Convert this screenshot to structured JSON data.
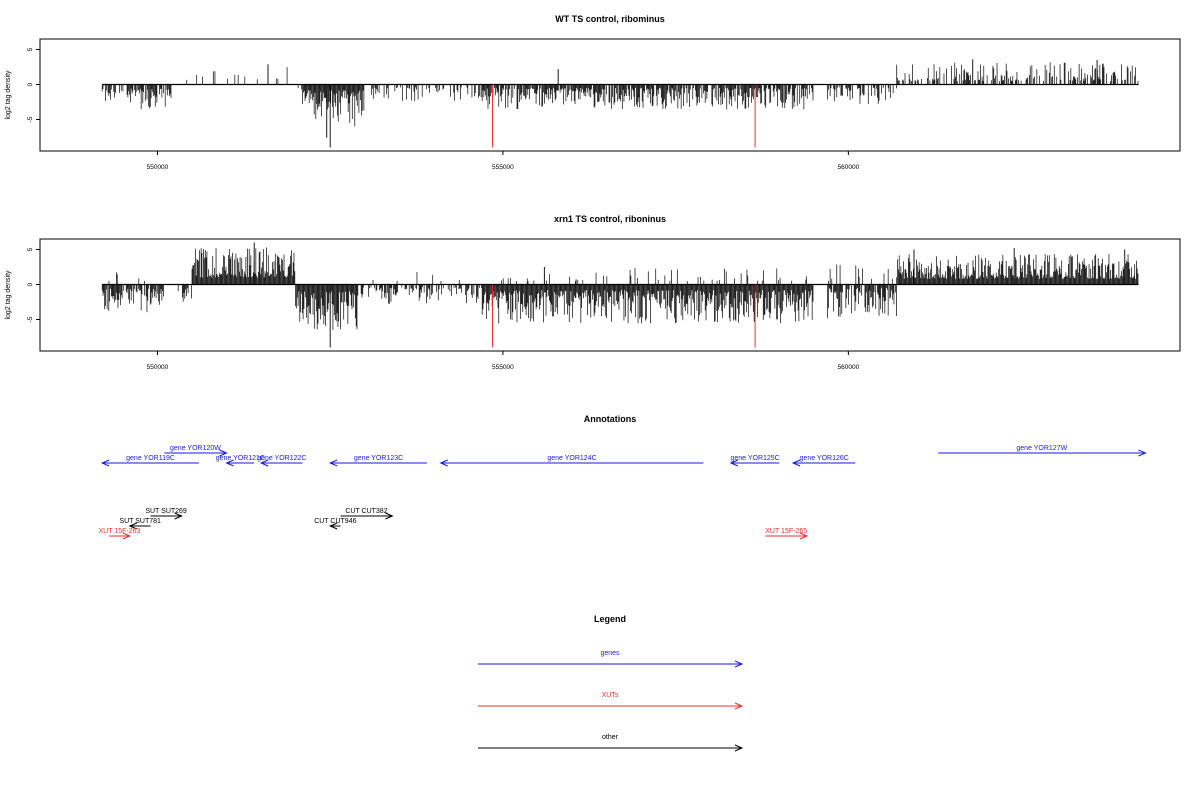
{
  "chart_data": [
    {
      "type": "bar",
      "id": "wt",
      "title": "WT TS control, ribominus",
      "ylabel": "log2 tag density",
      "xlim": [
        548300,
        564800
      ],
      "ylim": [
        -9.5,
        6.5
      ],
      "yticks": [
        -5,
        0,
        5
      ],
      "xticks": [
        550000,
        555000,
        560000
      ],
      "xtick_labels": [
        "550000",
        "555000",
        "560000"
      ],
      "baseline": 0,
      "segments": [
        {
          "start": 549200,
          "end": 550200,
          "sign": -1,
          "density": 0.7,
          "min": 0.6,
          "max": 3.6,
          "seed": 11
        },
        {
          "start": 550400,
          "end": 551950,
          "sign": 1,
          "density": 0.12,
          "min": 0.6,
          "max": 2.6,
          "seed": 12
        },
        {
          "start": 552000,
          "end": 552100,
          "sign": -1,
          "density": 0.2,
          "min": 0.5,
          "max": 1.5,
          "seed": 13
        },
        {
          "start": 552100,
          "end": 553000,
          "sign": -1,
          "density": 1.0,
          "min": 0.8,
          "max": 6.0,
          "seed": 14
        },
        {
          "start": 553100,
          "end": 554700,
          "sign": -1,
          "density": 0.45,
          "min": 0.4,
          "max": 2.6,
          "seed": 15
        },
        {
          "start": 554700,
          "end": 559500,
          "sign": -1,
          "density": 0.85,
          "min": 0.5,
          "max": 3.6,
          "seed": 16
        },
        {
          "start": 559700,
          "end": 560700,
          "sign": -1,
          "density": 0.5,
          "min": 0.4,
          "max": 2.8,
          "seed": 17
        },
        {
          "start": 560700,
          "end": 564200,
          "sign": 1,
          "density": 0.55,
          "min": 0.5,
          "max": 3.2,
          "seed": 18
        }
      ],
      "spikes": [
        {
          "x": 552500,
          "y": -9.0
        },
        {
          "x": 552450,
          "y": -7.6
        },
        {
          "x": 555800,
          "y": 2.2
        },
        {
          "x": 551600,
          "y": 2.9
        },
        {
          "x": 561800,
          "y": 3.6
        },
        {
          "x": 563600,
          "y": 3.5
        }
      ],
      "markers": [
        554850,
        558650
      ],
      "marker_color": "#e8302e"
    },
    {
      "type": "bar",
      "id": "xrn1",
      "title": "xrn1 TS control, riboninus",
      "ylabel": "log2 tag density",
      "xlim": [
        548300,
        564800
      ],
      "ylim": [
        -9.5,
        6.5
      ],
      "yticks": [
        -5,
        0,
        5
      ],
      "xticks": [
        550000,
        555000,
        560000
      ],
      "xtick_labels": [
        "550000",
        "555000",
        "560000"
      ],
      "baseline": 0,
      "segments": [
        {
          "start": 549200,
          "end": 550100,
          "sign": -1,
          "density": 0.8,
          "min": 0.6,
          "max": 4.2,
          "seed": 21
        },
        {
          "start": 549250,
          "end": 550050,
          "sign": 1,
          "density": 0.1,
          "min": 0.5,
          "max": 2.4,
          "seed": 22
        },
        {
          "start": 550300,
          "end": 550500,
          "sign": -1,
          "density": 0.5,
          "min": 0.5,
          "max": 2.8,
          "seed": 23
        },
        {
          "start": 550500,
          "end": 552000,
          "sign": 1,
          "density": 1.0,
          "min": 1.0,
          "max": 5.4,
          "seed": 24
        },
        {
          "start": 552000,
          "end": 552900,
          "sign": -1,
          "density": 1.0,
          "min": 1.0,
          "max": 6.5,
          "seed": 25
        },
        {
          "start": 552900,
          "end": 554700,
          "sign": -1,
          "density": 0.55,
          "min": 0.4,
          "max": 2.8,
          "seed": 26
        },
        {
          "start": 553000,
          "end": 554600,
          "sign": 1,
          "density": 0.05,
          "min": 0.5,
          "max": 2.0,
          "seed": 27
        },
        {
          "start": 554700,
          "end": 559500,
          "sign": -1,
          "density": 1.0,
          "min": 0.8,
          "max": 5.6,
          "seed": 28
        },
        {
          "start": 554800,
          "end": 559400,
          "sign": 1,
          "density": 0.12,
          "min": 0.5,
          "max": 2.4,
          "seed": 29
        },
        {
          "start": 559700,
          "end": 560700,
          "sign": -1,
          "density": 0.8,
          "min": 0.5,
          "max": 4.8,
          "seed": 30
        },
        {
          "start": 559700,
          "end": 560700,
          "sign": 1,
          "density": 0.15,
          "min": 0.5,
          "max": 3.0,
          "seed": 31
        },
        {
          "start": 560700,
          "end": 564200,
          "sign": 1,
          "density": 1.0,
          "min": 0.8,
          "max": 4.4,
          "seed": 32
        }
      ],
      "spikes": [
        {
          "x": 552500,
          "y": -9.0
        },
        {
          "x": 551400,
          "y": 6.0
        },
        {
          "x": 555600,
          "y": 2.5
        },
        {
          "x": 562400,
          "y": 5.2
        },
        {
          "x": 564000,
          "y": 5.0
        },
        {
          "x": 560950,
          "y": 5.0
        }
      ],
      "markers": [
        554850,
        558650
      ],
      "marker_color": "#e8302e"
    }
  ],
  "annotations": {
    "title": "Annotations",
    "features": [
      {
        "label": "gene YOR119C",
        "start": 549200,
        "end": 550600,
        "row": 3,
        "strand": "-",
        "color": "#1a1adb"
      },
      {
        "label": "gene YOR120W",
        "start": 550100,
        "end": 551000,
        "row": 4,
        "strand": "+",
        "color": "#1a1adb"
      },
      {
        "label": "gene YOR121C",
        "start": 551000,
        "end": 551400,
        "row": 3,
        "strand": "-",
        "color": "#1a1adb"
      },
      {
        "label": "gene YOR122C",
        "start": 551500,
        "end": 552100,
        "row": 3,
        "strand": "-",
        "color": "#1a1adb"
      },
      {
        "label": "gene YOR123C",
        "start": 552500,
        "end": 553900,
        "row": 3,
        "strand": "-",
        "color": "#1a1adb"
      },
      {
        "label": "gene YOR124C",
        "start": 554100,
        "end": 557900,
        "row": 3,
        "strand": "-",
        "color": "#1a1adb"
      },
      {
        "label": "gene YOR125C",
        "start": 558300,
        "end": 559000,
        "row": 3,
        "strand": "-",
        "color": "#1a1adb"
      },
      {
        "label": "gene YOR126C",
        "start": 559200,
        "end": 560100,
        "row": 3,
        "strand": "-",
        "color": "#1a1adb"
      },
      {
        "label": "gene YOR127W",
        "start": 561300,
        "end": 564300,
        "row": 4,
        "strand": "+",
        "color": "#1a1adb"
      },
      {
        "label": "SUT SUT269",
        "start": 549900,
        "end": 550350,
        "row": 2,
        "strand": "+",
        "color": "#000000"
      },
      {
        "label": "SUT SUT781",
        "start": 549600,
        "end": 549900,
        "row": 1,
        "strand": "-",
        "color": "#000000"
      },
      {
        "label": "CUT CUT382",
        "start": 552650,
        "end": 553400,
        "row": 2,
        "strand": "+",
        "color": "#000000"
      },
      {
        "label": "CUT CUT946",
        "start": 552500,
        "end": 552650,
        "row": 1,
        "strand": "-",
        "color": "#000000"
      },
      {
        "label": "XUT 15F-263",
        "start": 549300,
        "end": 549600,
        "row": 0,
        "strand": "+",
        "color": "#e8302e"
      },
      {
        "label": "XUT 15F-265",
        "start": 558800,
        "end": 559400,
        "row": 0,
        "strand": "+",
        "color": "#e8302e"
      }
    ]
  },
  "legend": {
    "title": "Legend",
    "items": [
      {
        "label": "genes",
        "color": "#1a1adb"
      },
      {
        "label": "XUTs",
        "color": "#e8302e"
      },
      {
        "label": "other",
        "color": "#000000"
      }
    ]
  }
}
